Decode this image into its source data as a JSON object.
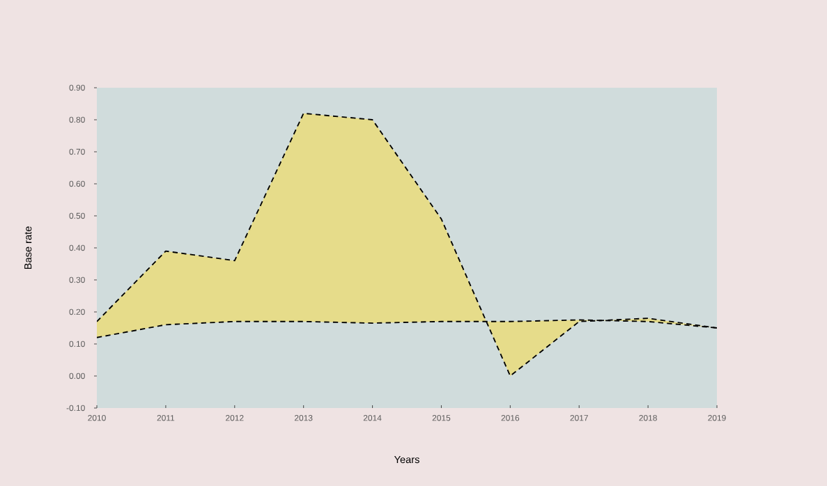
{
  "chart_data": {
    "type": "line",
    "xlabel": "Years",
    "ylabel": "Base rate",
    "categories": [
      "2010",
      "2011",
      "2012",
      "2013",
      "2014",
      "2015",
      "2016",
      "2017",
      "2018",
      "2019"
    ],
    "series": [
      {
        "type": "area",
        "color": "#e6dc8a",
        "values": [
          0.17,
          0.39,
          0.36,
          0.82,
          0.8,
          0.49,
          0.0,
          0.17,
          0.18,
          0.15
        ]
      },
      {
        "color": "#000000",
        "values": [
          0.12,
          0.16,
          0.17,
          0.17,
          0.165,
          0.17,
          0.17,
          0.175,
          0.17,
          0.15
        ]
      }
    ],
    "ylim": [
      -0.1,
      0.9
    ],
    "yticks": [
      {
        "value": -0.1,
        "label": "-0.10"
      },
      {
        "value": 0.0,
        "label": "0.00"
      },
      {
        "value": 0.1,
        "label": "0.10"
      },
      {
        "value": 0.2,
        "label": "0.20"
      },
      {
        "value": 0.3,
        "label": "0.30"
      },
      {
        "value": 0.4,
        "label": "0.40"
      },
      {
        "value": 0.5,
        "label": "0.50"
      },
      {
        "value": 0.6,
        "label": "0.60"
      },
      {
        "value": 0.7,
        "label": "0.70"
      },
      {
        "value": 0.8,
        "label": "0.80"
      },
      {
        "value": 0.9,
        "label": "0.90"
      }
    ],
    "line_style": "dashed",
    "grid": false
  }
}
